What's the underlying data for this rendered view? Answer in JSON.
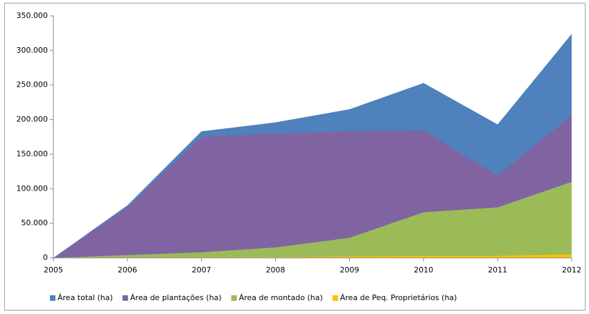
{
  "chart_data": {
    "type": "area",
    "categories": [
      "2005",
      "2006",
      "2007",
      "2008",
      "2009",
      "2010",
      "2011",
      "2012"
    ],
    "series": [
      {
        "name": "Área total (ha)",
        "color": "#4f81bd",
        "values": [
          0,
          76000,
          183000,
          196000,
          215000,
          253000,
          193000,
          324000
        ]
      },
      {
        "name": "Área de plantações (ha)",
        "color": "#8064a2",
        "values": [
          0,
          73000,
          175000,
          180000,
          183000,
          184000,
          119000,
          206000
        ]
      },
      {
        "name": "Área de montado (ha)",
        "color": "#9bbb59",
        "values": [
          0,
          4000,
          8000,
          15000,
          29000,
          66000,
          73000,
          110000
        ]
      },
      {
        "name": "Área de Peq. Proprietários (ha)",
        "color": "#ffc000",
        "values": [
          0,
          500,
          800,
          1000,
          2000,
          3000,
          3000,
          5000
        ]
      }
    ],
    "ylim": [
      0,
      350000
    ],
    "yticks": [
      {
        "value": 0,
        "label": "0"
      },
      {
        "value": 50000,
        "label": "50.000"
      },
      {
        "value": 100000,
        "label": "100.000"
      },
      {
        "value": 150000,
        "label": "150.000"
      },
      {
        "value": 200000,
        "label": "200.000"
      },
      {
        "value": 250000,
        "label": "250.000"
      },
      {
        "value": 300000,
        "label": "300.000"
      },
      {
        "value": 350000,
        "label": "350.000"
      }
    ],
    "legend": "bottom"
  }
}
